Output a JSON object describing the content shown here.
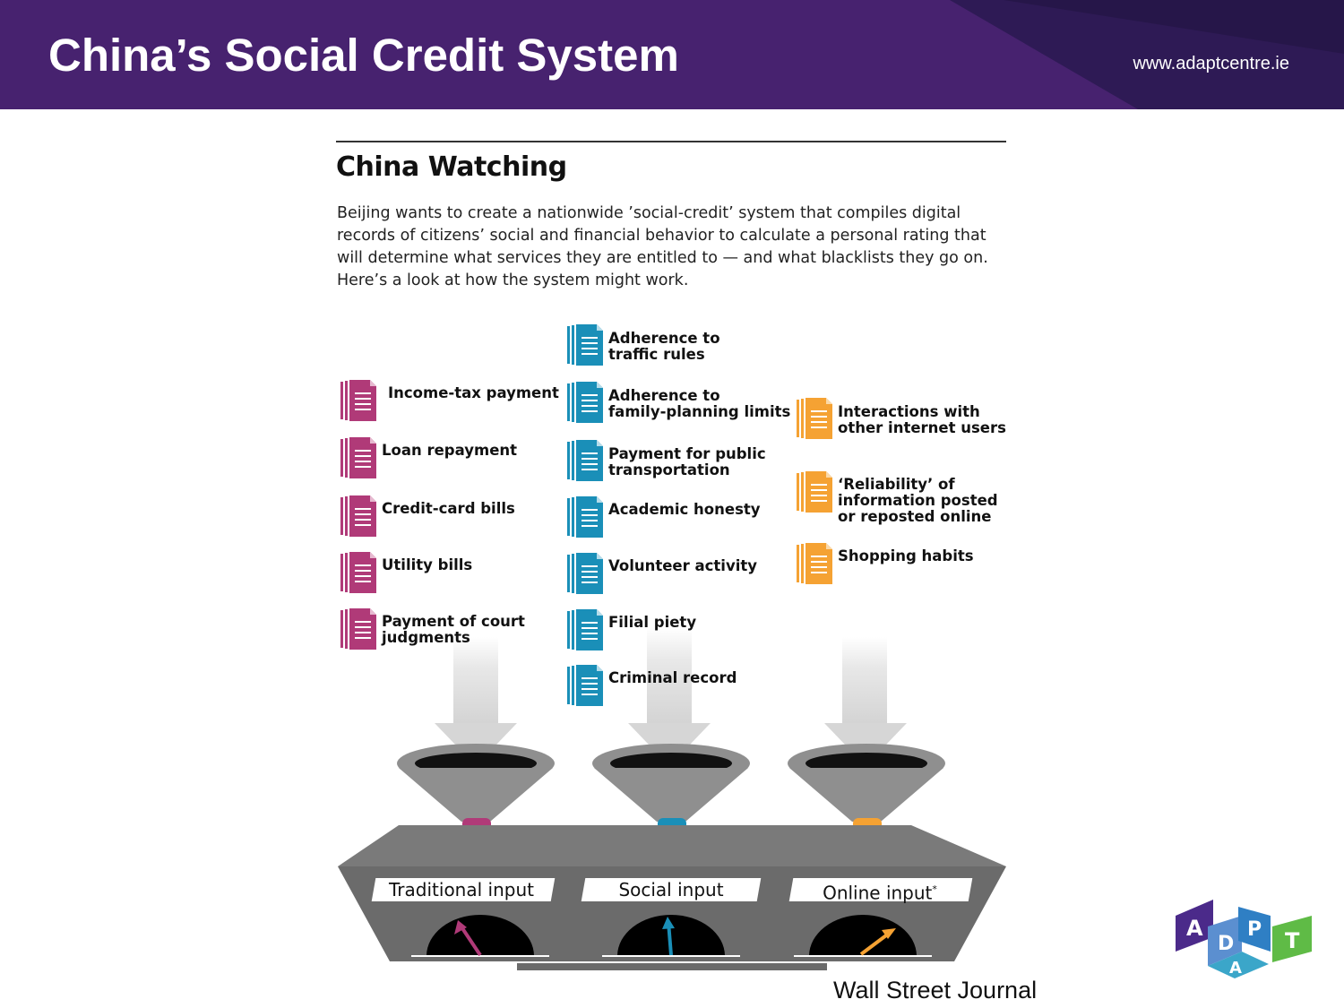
{
  "slide": {
    "title": "China’s Social Credit System",
    "url": "www.adaptcentre.ie",
    "source": "Wall Street Journal",
    "logo_letters": [
      "A",
      "D",
      "A",
      "P",
      "T"
    ]
  },
  "infographic": {
    "title": "China Watching",
    "description": "Beijing wants to create a nationwide ’social-credit’ system that compiles digital records of citizens’ social and financial behavior to calculate a personal rating that will determine what services they are entitled to — and what blacklists they go on. Here’s a look at how the system might work.",
    "columns": [
      {
        "color": "#b03a78",
        "items": [
          "Income-tax payment",
          "Loan repayment",
          "Credit-card bills",
          "Utility bills",
          "Payment of court\njudgments"
        ]
      },
      {
        "color": "#1a8fb8",
        "items": [
          "Adherence to\ntraffic rules",
          "Adherence to\nfamily-planning limits",
          "Payment for public\ntransportation",
          "Academic honesty",
          "Volunteer activity",
          "Filial piety",
          "Criminal record"
        ]
      },
      {
        "color": "#f5a233",
        "items": [
          "Interactions with\nother internet users",
          "‘Reliability’ of\ninformation posted\nor reposted online",
          "Shopping habits"
        ]
      }
    ],
    "inputs": [
      {
        "label": "Traditional input",
        "color": "#b03a78"
      },
      {
        "label": "Social input",
        "color": "#1a8fb8"
      },
      {
        "label": "Online input",
        "color": "#f5a233",
        "footnote_mark": "*"
      }
    ]
  },
  "colors": {
    "header": "#47226f",
    "machine": "#6b6b6b",
    "arrow": "#e6e6e6"
  }
}
